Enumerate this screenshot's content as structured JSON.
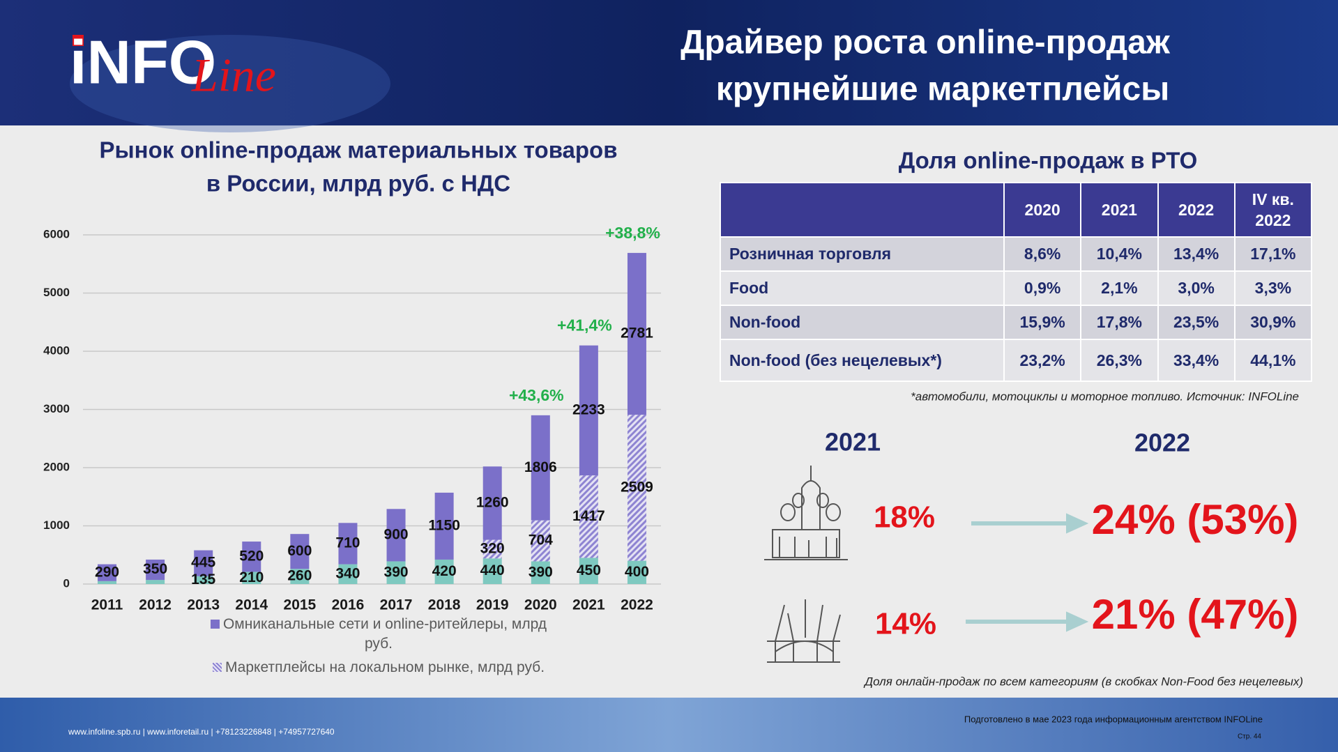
{
  "header": {
    "logo_main": "iNFO",
    "logo_script": "Line",
    "title": [
      "Драйвер роста online-продаж",
      "крупнейшие маркетплейсы"
    ]
  },
  "chart_data": {
    "type": "bar",
    "stacked": true,
    "title": [
      "Рынок online-продаж материальных товаров",
      "в России, млрд руб. с НДС"
    ],
    "categories": [
      "2011",
      "2012",
      "2013",
      "2014",
      "2015",
      "2016",
      "2017",
      "2018",
      "2019",
      "2020",
      "2021",
      "2022"
    ],
    "series": [
      {
        "color": "#7ec9c0",
        "values": [
          50,
          70,
          135,
          210,
          260,
          340,
          390,
          420,
          440,
          390,
          450,
          400
        ],
        "value_labels": [
          null,
          null,
          "135",
          "210",
          "260",
          "340",
          "390",
          "420",
          "440",
          "390",
          "450",
          "400"
        ]
      },
      {
        "name": "Маркетплейсы на локальном рынке, млрд руб.",
        "color": "#8e84d2",
        "pattern": "hatch",
        "values": [
          null,
          null,
          null,
          null,
          null,
          null,
          null,
          null,
          320,
          704,
          1417,
          2509
        ]
      },
      {
        "name": "Омниканальные сети и online-ритейлеры, млрд руб.",
        "color": "#7b70c9",
        "values": [
          290,
          350,
          445,
          520,
          600,
          710,
          900,
          1150,
          1260,
          1806,
          2233,
          2781
        ]
      }
    ],
    "annotations": [
      {
        "x": "2020",
        "text": "+43,6%"
      },
      {
        "x": "2021",
        "text": "+41,4%"
      },
      {
        "x": "2022",
        "text": "+38,8%"
      }
    ],
    "ylim": [
      0,
      6000
    ],
    "yticks": [
      0,
      1000,
      2000,
      3000,
      4000,
      5000,
      6000
    ],
    "grid": true
  },
  "table": {
    "title": "Доля online-продаж в РТО",
    "columns": [
      "2020",
      "2021",
      "2022",
      "IV кв. 2022"
    ],
    "rows": [
      [
        "Розничная торговля",
        "8,6%",
        "10,4%",
        "13,4%",
        "17,1%"
      ],
      [
        "Food",
        "0,9%",
        "2,1%",
        "3,0%",
        "3,3%"
      ],
      [
        "Non-food",
        "15,9%",
        "17,8%",
        "23,5%",
        "30,9%"
      ],
      [
        "Non-food (без нецелевых*)",
        "23,2%",
        "26,3%",
        "33,4%",
        "44,1%"
      ]
    ],
    "footnote": "*автомобили, мотоциклы и моторное топливо. Источник: INFOLine"
  },
  "comparison": {
    "years": [
      "2021",
      "2022"
    ],
    "rows": [
      {
        "from": "18%",
        "to": "24% (53%)"
      },
      {
        "from": "14%",
        "to": "21% (47%)"
      }
    ],
    "caption": "Доля онлайн-продаж по всем категориям (в скобках Non-Food без нецелевых)"
  },
  "footer": {
    "contacts": "www.infoline.spb.ru | www.inforetail.ru | +78123226848 | +74957727640",
    "prepared": "Подготовлено в мае 2023 года информационным агентством INFOLine",
    "page": "Стр. 44"
  }
}
